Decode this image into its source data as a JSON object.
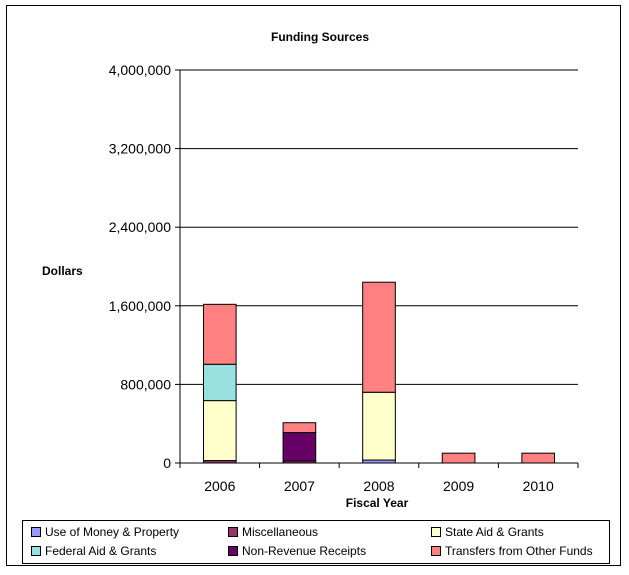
{
  "chart_data": {
    "type": "bar",
    "stacked": true,
    "title": "Funding Sources",
    "xlabel": "Fiscal Year",
    "ylabel": "Dollars",
    "ylim": [
      0,
      4000000
    ],
    "yticks": [
      0,
      800000,
      1600000,
      2400000,
      3200000,
      4000000
    ],
    "ytick_labels": [
      "0",
      "800,000",
      "1,600,000",
      "2,400,000",
      "3,200,000",
      "4,000,000"
    ],
    "categories": [
      "2006",
      "2007",
      "2008",
      "2009",
      "2010"
    ],
    "grid": true,
    "legend_position": "bottom",
    "series": [
      {
        "name": "Use of Money & Property",
        "color": "#9999FF",
        "values": [
          0,
          0,
          30000,
          0,
          0
        ]
      },
      {
        "name": "Miscellaneous",
        "color": "#993366",
        "values": [
          25000,
          20000,
          0,
          0,
          0
        ]
      },
      {
        "name": "State Aid & Grants",
        "color": "#FFFFCC",
        "values": [
          610000,
          0,
          690000,
          0,
          0
        ]
      },
      {
        "name": "Federal Aid & Grants",
        "color": "#99E0E0",
        "values": [
          370000,
          0,
          0,
          0,
          0
        ]
      },
      {
        "name": "Non-Revenue Receipts",
        "color": "#660066",
        "values": [
          0,
          290000,
          0,
          0,
          0
        ]
      },
      {
        "name": "Transfers from Other Funds",
        "color": "#FF8080",
        "values": [
          610000,
          100000,
          1120000,
          100000,
          100000
        ]
      }
    ]
  }
}
